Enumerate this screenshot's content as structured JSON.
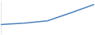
{
  "chart_data": {
    "type": "line",
    "categories": [
      null,
      null,
      null,
      null,
      null
    ],
    "values": [
      2.9,
      3.3,
      4.0,
      6.4,
      8.9
    ],
    "color": "#4a7ebb",
    "ylim": [
      0,
      10
    ],
    "yticks": [],
    "grid": false,
    "tick_labels": false
  }
}
